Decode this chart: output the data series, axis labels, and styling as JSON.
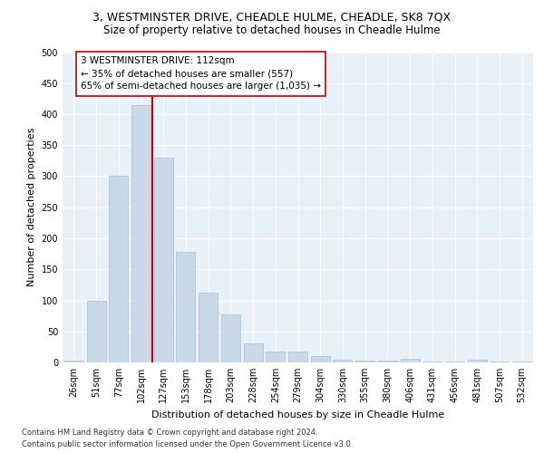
{
  "title1": "3, WESTMINSTER DRIVE, CHEADLE HULME, CHEADLE, SK8 7QX",
  "title2": "Size of property relative to detached houses in Cheadle Hulme",
  "xlabel": "Distribution of detached houses by size in Cheadle Hulme",
  "ylabel": "Number of detached properties",
  "bar_labels": [
    "26sqm",
    "51sqm",
    "77sqm",
    "102sqm",
    "127sqm",
    "153sqm",
    "178sqm",
    "203sqm",
    "228sqm",
    "254sqm",
    "279sqm",
    "304sqm",
    "330sqm",
    "355sqm",
    "380sqm",
    "406sqm",
    "431sqm",
    "456sqm",
    "481sqm",
    "507sqm",
    "532sqm"
  ],
  "bar_values": [
    3,
    100,
    300,
    415,
    330,
    178,
    112,
    77,
    30,
    18,
    17,
    10,
    5,
    3,
    3,
    6,
    2,
    1,
    4,
    2,
    1
  ],
  "bar_color": "#c9d9e8",
  "bar_edge_color": "#a8c0d4",
  "vline_x_pos": 3.5,
  "vline_color": "#cc0000",
  "annotation_text": "3 WESTMINSTER DRIVE: 112sqm\n← 35% of detached houses are smaller (557)\n65% of semi-detached houses are larger (1,035) →",
  "annotation_box_color": "#ffffff",
  "annotation_box_edge": "#cc0000",
  "bg_color": "#e8f0f8",
  "grid_color": "#ffffff",
  "footer1": "Contains HM Land Registry data © Crown copyright and database right 2024.",
  "footer2": "Contains public sector information licensed under the Open Government Licence v3.0.",
  "ylim": [
    0,
    500
  ],
  "yticks": [
    0,
    50,
    100,
    150,
    200,
    250,
    300,
    350,
    400,
    450,
    500
  ],
  "title1_fontsize": 9,
  "title2_fontsize": 8.5,
  "xlabel_fontsize": 8,
  "ylabel_fontsize": 8,
  "tick_fontsize": 7,
  "annotation_fontsize": 7.5,
  "footer_fontsize": 6
}
